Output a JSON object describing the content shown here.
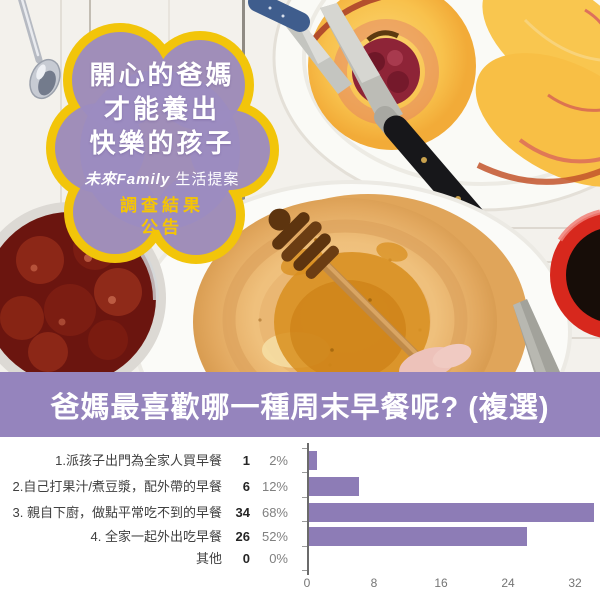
{
  "overlay": {
    "headline_lines": [
      "開心的爸媽",
      "才能養出",
      "快樂的孩子"
    ],
    "tagline_brand": "未來Family",
    "tagline_rest": " 生活提案",
    "badge_line1": "調查結果",
    "badge_line2": "公告",
    "colors": {
      "blob_fill": "#9c8bc1",
      "blob_border": "#f2c50a",
      "headline_text": "#ffffff",
      "badge_text": "#f5c504"
    }
  },
  "banner": {
    "title": "爸媽最喜歡哪一種周末早餐呢? (複選)",
    "bg_color": "#9584bd",
    "text_color": "#ffffff"
  },
  "chart_data": {
    "type": "bar",
    "orientation": "horizontal",
    "categories": [
      "1.派孩子出門為全家人買早餐",
      "2.自己打果汁/煮豆漿，配外帶的早餐",
      "3. 親自下廚，做點平常吃不到的早餐",
      "4. 全家一起外出吃早餐",
      "其他"
    ],
    "counts": [
      1,
      6,
      34,
      26,
      0
    ],
    "percent_labels": [
      "2%",
      "12%",
      "68%",
      "52%",
      "0%"
    ],
    "x_ticks": [
      0,
      8,
      16,
      24,
      32
    ],
    "xlim": [
      0,
      35
    ],
    "bar_color": "#8d7cb6",
    "grid": false,
    "legend": false,
    "title": ""
  },
  "photo_elements": {
    "items": [
      "spoon",
      "denim-knife",
      "peach-plate",
      "peach-half",
      "peach-slices",
      "paring-knife",
      "pancake-plate",
      "pancakes",
      "honey-pool",
      "honey-dipper",
      "hand",
      "jam-bowl",
      "coffee-mug",
      "butter-knife"
    ]
  }
}
